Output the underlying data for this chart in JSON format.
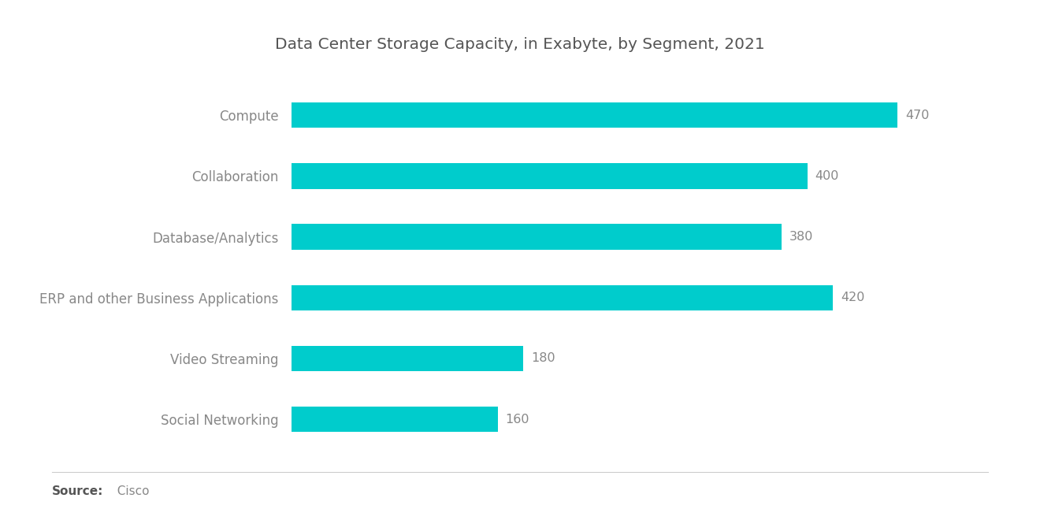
{
  "title": "Data Center Storage Capacity, in Exabyte, by Segment, 2021",
  "categories": [
    "Compute",
    "Collaboration",
    "Database/Analytics",
    "ERP and other Business Applications",
    "Video Streaming",
    "Social Networking"
  ],
  "values": [
    470,
    400,
    380,
    420,
    180,
    160
  ],
  "bar_color": "#00CCCC",
  "value_color": "#888888",
  "label_color": "#888888",
  "title_color": "#555555",
  "background_color": "#ffffff",
  "source_bold": "Source:",
  "source_normal": "  Cisco",
  "bar_height": 0.42,
  "xlim": [
    0,
    540
  ],
  "title_fontsize": 14.5,
  "label_fontsize": 12,
  "value_fontsize": 11.5,
  "source_fontsize": 11
}
